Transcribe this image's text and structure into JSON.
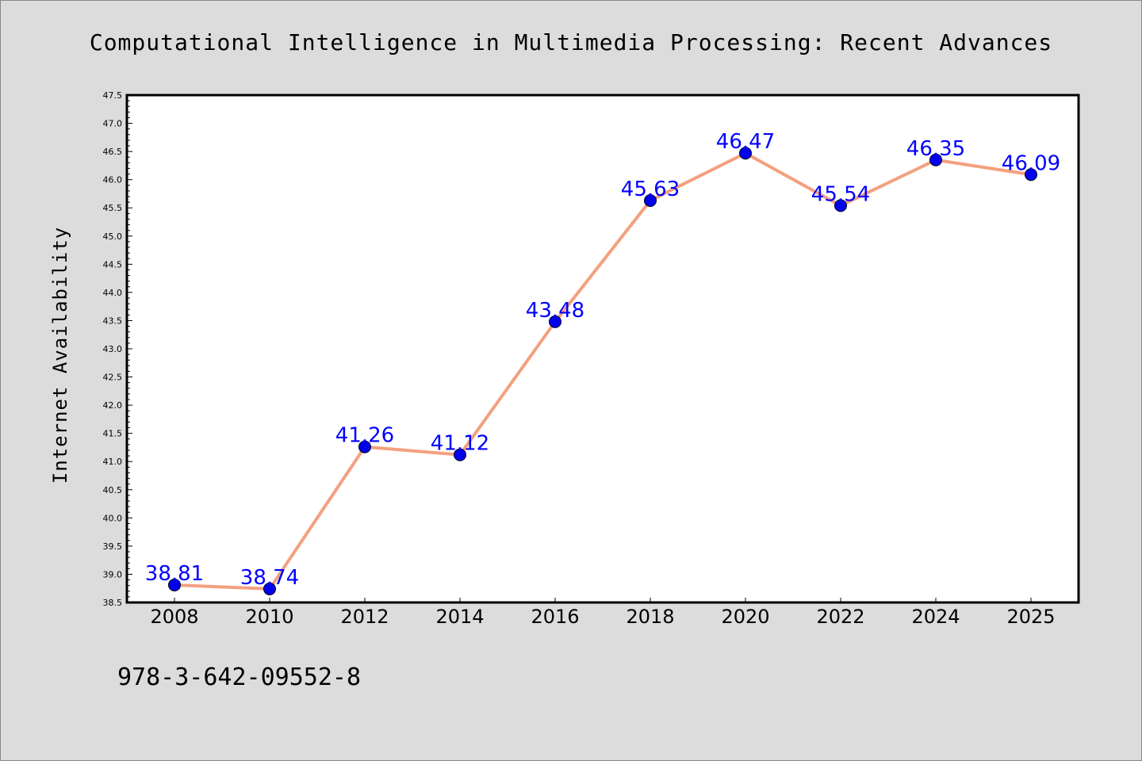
{
  "chart_data": {
    "type": "line",
    "title": "Computational Intelligence in Multimedia Processing: Recent Advances",
    "xlabel": "",
    "ylabel": "Internet Availability",
    "categories": [
      "2008",
      "2010",
      "2012",
      "2014",
      "2016",
      "2018",
      "2020",
      "2022",
      "2024",
      "2025"
    ],
    "series": [
      {
        "values": [
          38.81,
          38.74,
          41.26,
          41.12,
          43.48,
          45.63,
          46.47,
          45.54,
          46.35,
          46.09
        ]
      }
    ],
    "data_labels": [
      "38.81",
      "38.74",
      "41.26",
      "41.12",
      "43.48",
      "45.63",
      "46.47",
      "45.54",
      "46.35",
      "46.09"
    ],
    "ylim": [
      38.5,
      47.5
    ],
    "y_ticks": [
      "38.5",
      "39.0",
      "39.5",
      "40.0",
      "40.5",
      "41.0",
      "41.5",
      "42.0",
      "42.5",
      "43.0",
      "43.5",
      "44.0",
      "44.5",
      "45.0",
      "45.5",
      "46.0",
      "46.5",
      "47.0",
      "47.5"
    ],
    "grid": false,
    "legend": "none",
    "colors": {
      "line": "#f4a07e",
      "marker": "#0000ee",
      "data_label": "#0000ff",
      "background": "#dcdcdc",
      "plot_background": "#ffffff"
    }
  },
  "footer": {
    "isbn": "978-3-642-09552-8"
  }
}
